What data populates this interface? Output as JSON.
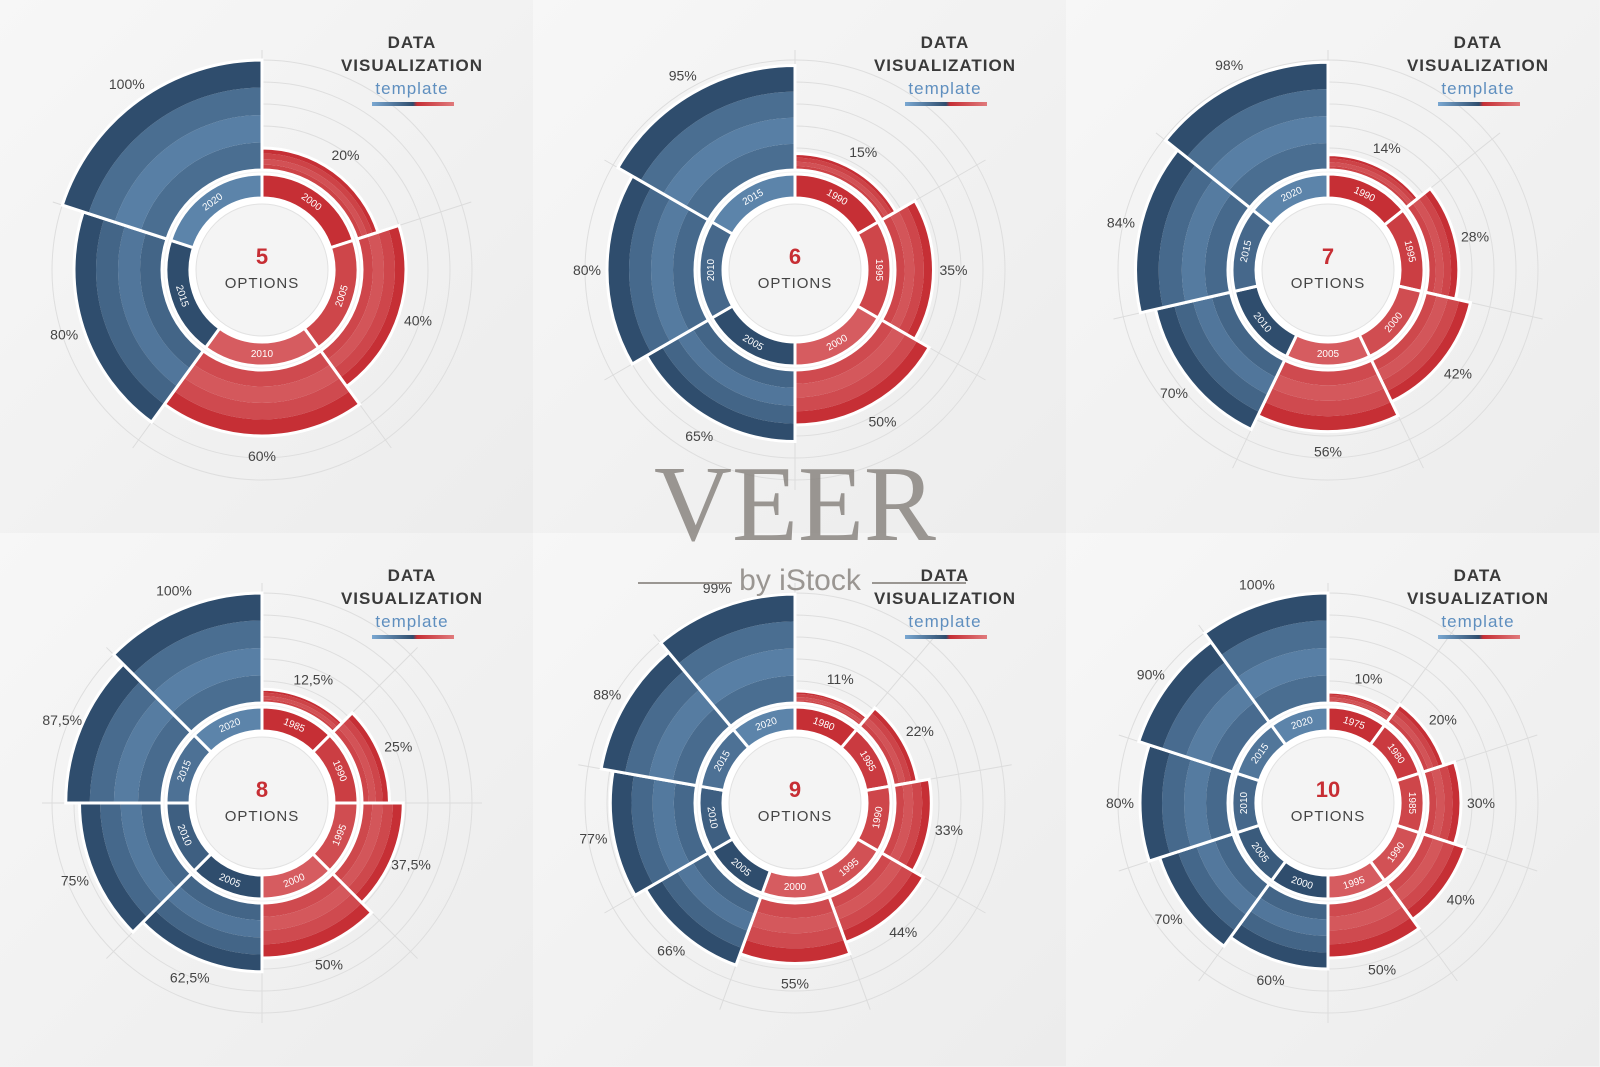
{
  "colors": {
    "red_dark": "#c62f35",
    "red_mid": "#d64f52",
    "red_light": "#e07a7c",
    "blue_dark": "#2f4d6d",
    "blue_mid": "#4a6f97",
    "blue_light": "#7aa8d2",
    "center_number": "#c72e34",
    "text": "#444444"
  },
  "header": {
    "line1": "DATA",
    "line2": "VISUALIZATION",
    "line3": "template"
  },
  "watermark": {
    "brand": "VEER",
    "sub": "by iStock"
  },
  "center_label": "OPTIONS",
  "chart_data": [
    {
      "type": "pie",
      "title": "DATA VISUALIZATION template",
      "center_value": "5",
      "years": [
        "2000",
        "2005",
        "2010",
        "2015",
        "2020"
      ],
      "values": [
        20,
        40,
        60,
        80,
        100
      ],
      "labels": [
        "20%",
        "40%",
        "60%",
        "80%",
        "100%"
      ]
    },
    {
      "type": "pie",
      "title": "DATA VISUALIZATION template",
      "center_value": "6",
      "years": [
        "1990",
        "1995",
        "2000",
        "2005",
        "2010",
        "2015"
      ],
      "values": [
        15,
        35,
        50,
        65,
        80,
        95
      ],
      "labels": [
        "15%",
        "35%",
        "50%",
        "65%",
        "80%",
        "95%"
      ]
    },
    {
      "type": "pie",
      "title": "DATA VISUALIZATION template",
      "center_value": "7",
      "years": [
        "1990",
        "1995",
        "2000",
        "2005",
        "2010",
        "2015",
        "2020"
      ],
      "values": [
        14,
        28,
        42,
        56,
        70,
        84,
        98
      ],
      "labels": [
        "14%",
        "28%",
        "42%",
        "56%",
        "70%",
        "84%",
        "98%"
      ]
    },
    {
      "type": "pie",
      "title": "DATA VISUALIZATION template",
      "center_value": "8",
      "years": [
        "1985",
        "1990",
        "1995",
        "2000",
        "2005",
        "2010",
        "2015",
        "2020"
      ],
      "values": [
        12.5,
        25,
        37.5,
        50,
        62.5,
        75,
        87.5,
        100
      ],
      "labels": [
        "12,5%",
        "25%",
        "37,5%",
        "50%",
        "62,5%",
        "75%",
        "87,5%",
        "100%"
      ]
    },
    {
      "type": "pie",
      "title": "DATA VISUALIZATION template",
      "center_value": "9",
      "years": [
        "1980",
        "1985",
        "1990",
        "1995",
        "2000",
        "2005",
        "2010",
        "2015",
        "2020"
      ],
      "values": [
        11,
        22,
        33,
        44,
        55,
        66,
        77,
        88,
        99
      ],
      "labels": [
        "11%",
        "22%",
        "33%",
        "44%",
        "55%",
        "66%",
        "77%",
        "88%",
        "99%"
      ]
    },
    {
      "type": "pie",
      "title": "DATA VISUALIZATION template",
      "center_value": "10",
      "years": [
        "1975",
        "1980",
        "1985",
        "1990",
        "1995",
        "2000",
        "2005",
        "2010",
        "2015",
        "2020"
      ],
      "values": [
        10,
        20,
        30,
        40,
        50,
        60,
        70,
        80,
        90,
        100
      ],
      "labels": [
        "10%",
        "20%",
        "30%",
        "40%",
        "50%",
        "60%",
        "70%",
        "80%",
        "90%",
        "100%"
      ]
    }
  ]
}
